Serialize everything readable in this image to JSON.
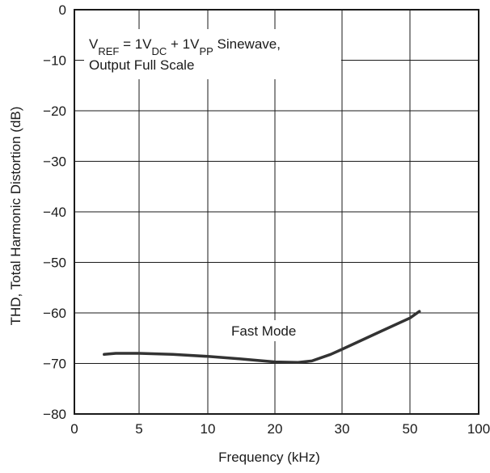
{
  "chart_data": {
    "type": "line",
    "title": "",
    "xlabel": "Frequency (kHz)",
    "ylabel": "THD, Total Harmonic Distortion (dB)",
    "x_scale": "log",
    "xlim": [
      0,
      100
    ],
    "ylim": [
      -80,
      0
    ],
    "x_ticks": [
      {
        "label": "0",
        "value": 0
      },
      {
        "label": "5",
        "value": 5
      },
      {
        "label": "10",
        "value": 10
      },
      {
        "label": "20",
        "value": 20
      },
      {
        "label": "30",
        "value": 30
      },
      {
        "label": "50",
        "value": 50
      },
      {
        "label": "100",
        "value": 100
      }
    ],
    "y_ticks": [
      0,
      -10,
      -20,
      -30,
      -40,
      -50,
      -60,
      -70,
      -80
    ],
    "grid": true,
    "annotation": {
      "line1": {
        "v1": "V",
        "s1": "REF",
        "v2": " = 1V",
        "s2": "DC",
        "v3": " + 1V",
        "s3": "PP",
        "v4": " Sinewave,"
      },
      "line2": "Output Full Scale"
    },
    "series": [
      {
        "name": "Fast Mode",
        "x": [
          2.3,
          3.2,
          5,
          7,
          10,
          14,
          20,
          23,
          25,
          28,
          30,
          40,
          50,
          55
        ],
        "y": [
          -68.2,
          -68.0,
          -68.0,
          -68.2,
          -68.6,
          -69.1,
          -69.7,
          -69.8,
          -69.5,
          -68.2,
          -67.2,
          -63.7,
          -61.0,
          -59.7
        ]
      }
    ]
  }
}
